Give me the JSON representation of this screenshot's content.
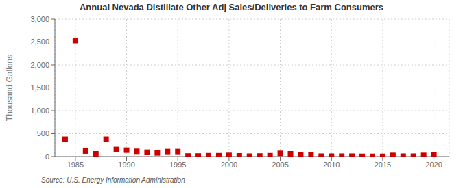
{
  "chart_data": {
    "type": "scatter",
    "title": "Annual Nevada Distillate Other Adj Sales/Deliveries to Farm Consumers",
    "ylabel": "Thousand Gallons",
    "annotations": [
      "Source: U.S. Energy Information Administration"
    ],
    "x": [
      1984,
      1985,
      1986,
      1987,
      1988,
      1989,
      1990,
      1991,
      1992,
      1993,
      1994,
      1995,
      1996,
      1997,
      1998,
      1999,
      2000,
      2001,
      2002,
      2003,
      2004,
      2005,
      2006,
      2007,
      2008,
      2009,
      2010,
      2011,
      2012,
      2013,
      2014,
      2015,
      2016,
      2017,
      2018,
      2019,
      2020
    ],
    "values": [
      380,
      2530,
      120,
      60,
      380,
      155,
      140,
      115,
      95,
      80,
      110,
      110,
      12,
      12,
      18,
      18,
      25,
      15,
      8,
      12,
      18,
      70,
      60,
      45,
      45,
      8,
      8,
      8,
      8,
      4,
      4,
      4,
      25,
      8,
      8,
      25,
      45
    ],
    "color": "#cc0000",
    "marker": "square",
    "xlim": [
      1983,
      2021.5
    ],
    "xticks": [
      1985,
      1990,
      1995,
      2000,
      2005,
      2010,
      2015,
      2020
    ],
    "ylim": [
      0,
      3000
    ],
    "yticks": [
      0,
      500,
      {
        "value": 1000,
        "label": "1,000"
      },
      {
        "value": 1500,
        "label": "1,500"
      },
      {
        "value": 2000,
        "label": "2,000"
      },
      {
        "value": 2500,
        "label": "2,500"
      },
      {
        "value": 3000,
        "label": "3,000"
      }
    ],
    "grid": true
  }
}
